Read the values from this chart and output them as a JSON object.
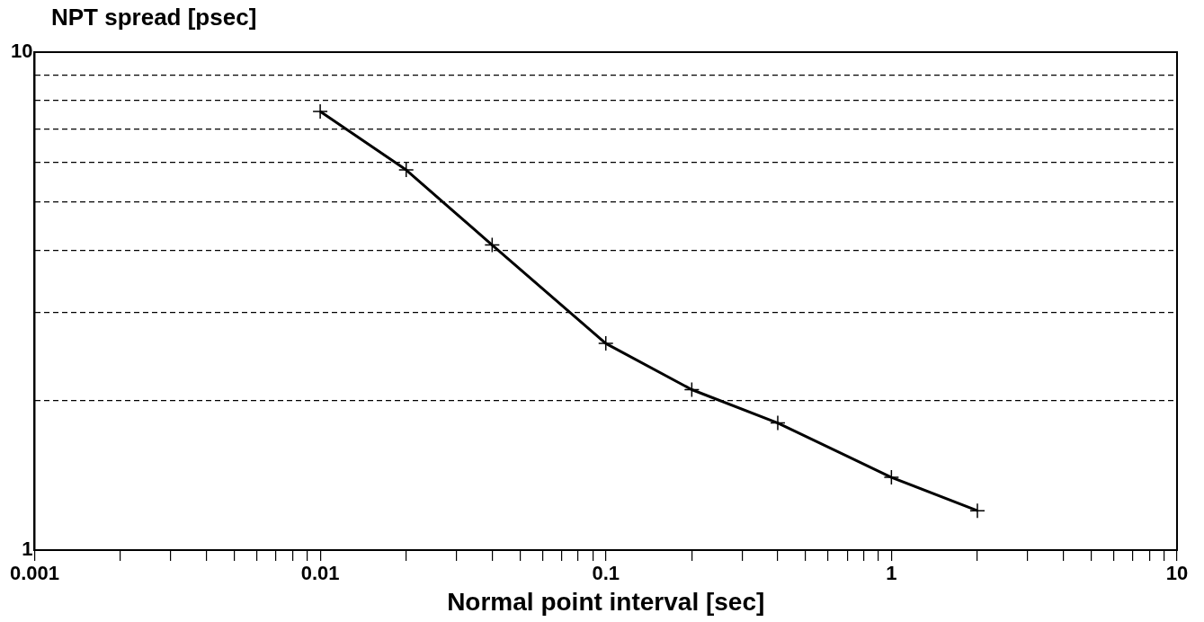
{
  "chart_data": {
    "type": "line",
    "ylabel": "NPT spread [psec]",
    "xlabel": "Normal point interval [sec]",
    "x": [
      0.01,
      0.02,
      0.04,
      0.1,
      0.2,
      0.4,
      1,
      2
    ],
    "series": [
      {
        "color": "#000000",
        "values": [
          7.6,
          5.8,
          4.1,
          2.6,
          2.1,
          1.8,
          1.4,
          1.2
        ]
      }
    ],
    "log": "xy",
    "xlim": [
      0.001,
      10
    ],
    "ylim": [
      1,
      10
    ],
    "xticks": [
      0.001,
      {
        "value": 0.002,
        "label": null
      },
      {
        "value": 0.003,
        "label": null
      },
      {
        "value": 0.004,
        "label": null
      },
      {
        "value": 0.005,
        "label": null
      },
      {
        "value": 0.006,
        "label": null
      },
      {
        "value": 0.007,
        "label": null
      },
      {
        "value": 0.008,
        "label": null
      },
      {
        "value": 0.009,
        "label": null
      },
      0.01,
      {
        "value": 0.02,
        "label": null
      },
      {
        "value": 0.03,
        "label": null
      },
      {
        "value": 0.04,
        "label": null
      },
      {
        "value": 0.05,
        "label": null
      },
      {
        "value": 0.06,
        "label": null
      },
      {
        "value": 0.07,
        "label": null
      },
      {
        "value": 0.08,
        "label": null
      },
      {
        "value": 0.09,
        "label": null
      },
      0.1,
      {
        "value": 0.2,
        "label": null
      },
      {
        "value": 0.3,
        "label": null
      },
      {
        "value": 0.4,
        "label": null
      },
      {
        "value": 0.5,
        "label": null
      },
      {
        "value": 0.6,
        "label": null
      },
      {
        "value": 0.7,
        "label": null
      },
      {
        "value": 0.8,
        "label": null
      },
      {
        "value": 0.9,
        "label": null
      },
      1,
      {
        "value": 2,
        "label": null
      },
      {
        "value": 3,
        "label": null
      },
      {
        "value": 4,
        "label": null
      },
      {
        "value": 5,
        "label": null
      },
      {
        "value": 6,
        "label": null
      },
      {
        "value": 7,
        "label": null
      },
      {
        "value": 8,
        "label": null
      },
      {
        "value": 9,
        "label": null
      },
      10
    ],
    "yticks": [
      1,
      {
        "value": 2,
        "label": null
      },
      {
        "value": 3,
        "label": null
      },
      {
        "value": 4,
        "label": null
      },
      {
        "value": 5,
        "label": null
      },
      {
        "value": 6,
        "label": null
      },
      {
        "value": 7,
        "label": null
      },
      {
        "value": 8,
        "label": null
      },
      {
        "value": 9,
        "label": null
      },
      10
    ],
    "grid": "y",
    "marker": "cross",
    "line_style": "solid"
  }
}
